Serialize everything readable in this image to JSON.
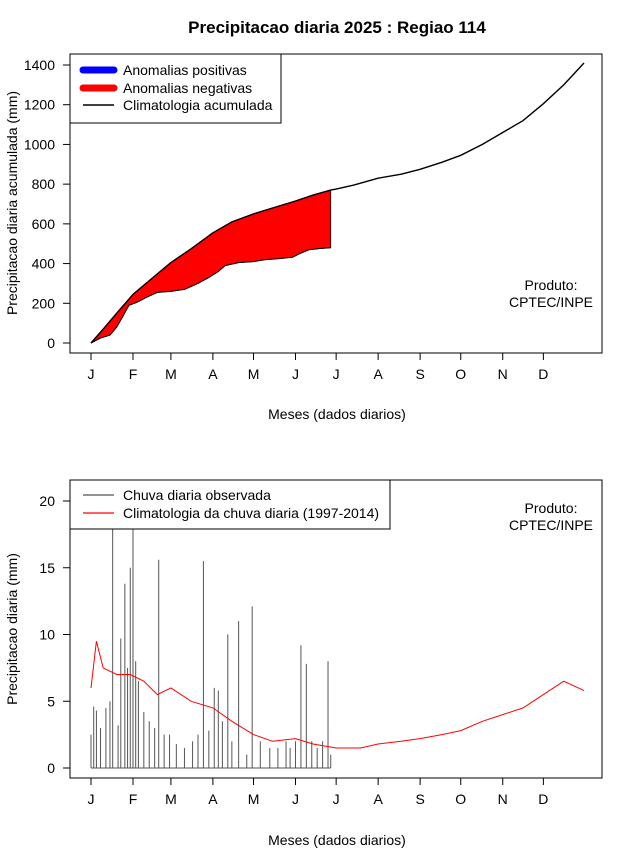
{
  "title": "Precipitacao diaria 2025 : Regiao 114",
  "chart_data": [
    {
      "type": "area",
      "xlabel": "Meses (dados diarios)",
      "ylabel": "Precipitacao diaria acumulada (mm)",
      "x_unit": "day of year",
      "xlim": [
        1,
        365
      ],
      "ylim": [
        0,
        1400
      ],
      "yticks": [
        0,
        200,
        400,
        600,
        800,
        1000,
        1200,
        1400
      ],
      "xtick_labels": [
        "J",
        "F",
        "M",
        "A",
        "M",
        "J",
        "J",
        "A",
        "S",
        "O",
        "N",
        "D"
      ],
      "xtick_days": [
        1,
        32,
        60,
        91,
        121,
        152,
        182,
        213,
        244,
        274,
        305,
        335
      ],
      "legend_position": "top-left",
      "legend": [
        {
          "label": "Anomalias positivas",
          "color": "#0000ff",
          "style": "thick"
        },
        {
          "label": "Anomalias negativas",
          "color": "#ff0000",
          "style": "thick"
        },
        {
          "label": "Climatologia acumulada",
          "color": "#000000",
          "style": "line"
        }
      ],
      "credit": [
        "Produto:",
        "CPTEC/INPE"
      ],
      "series": [
        {
          "name": "Climatologia acumulada",
          "x": [
            1,
            10,
            20,
            32,
            45,
            60,
            75,
            91,
            105,
            121,
            135,
            152,
            165,
            178,
            182,
            195,
            213,
            230,
            244,
            260,
            274,
            290,
            305,
            320,
            335,
            350,
            365
          ],
          "values": [
            0,
            70,
            150,
            245,
            320,
            405,
            475,
            555,
            610,
            650,
            680,
            715,
            745,
            770,
            775,
            795,
            830,
            850,
            875,
            910,
            945,
            1000,
            1060,
            1120,
            1205,
            1300,
            1410
          ]
        },
        {
          "name": "Precipitacao observada acumulada",
          "x": [
            1,
            8,
            15,
            20,
            25,
            29,
            35,
            42,
            50,
            60,
            70,
            80,
            88,
            95,
            100,
            110,
            121,
            130,
            140,
            150,
            155,
            162,
            170,
            178
          ],
          "values": [
            0,
            25,
            40,
            80,
            140,
            190,
            205,
            230,
            255,
            260,
            270,
            300,
            330,
            360,
            390,
            405,
            410,
            420,
            425,
            432,
            450,
            470,
            476,
            480
          ]
        }
      ]
    },
    {
      "type": "line",
      "xlabel": "Meses (dados diarios)",
      "ylabel": "Precipitacao diaria (mm)",
      "x_unit": "day of year",
      "xlim": [
        1,
        365
      ],
      "ylim": [
        0,
        20
      ],
      "yticks": [
        0,
        5,
        10,
        15,
        20
      ],
      "xtick_labels": [
        "J",
        "F",
        "M",
        "A",
        "M",
        "J",
        "J",
        "A",
        "S",
        "O",
        "N",
        "D"
      ],
      "xtick_days": [
        1,
        32,
        60,
        91,
        121,
        152,
        182,
        213,
        244,
        274,
        305,
        335
      ],
      "legend_position": "top-left",
      "legend": [
        {
          "label": "Chuva diaria observada",
          "color": "#555555",
          "style": "line"
        },
        {
          "label": "Climatologia da chuva diaria (1997-2014)",
          "color": "#ff0000",
          "style": "line"
        }
      ],
      "credit": [
        "Produto:",
        "CPTEC/INPE"
      ],
      "series": [
        {
          "name": "Chuva diaria observada",
          "color": "#555555",
          "x": [
            1,
            3,
            5,
            8,
            12,
            15,
            17,
            21,
            23,
            26,
            28,
            30,
            32,
            34,
            36,
            40,
            44,
            48,
            51,
            55,
            59,
            64,
            70,
            76,
            80,
            84,
            88,
            92,
            95,
            98,
            102,
            105,
            110,
            116,
            120,
            126,
            133,
            139,
            145,
            148,
            152,
            156,
            160,
            164,
            168,
            172,
            176,
            178
          ],
          "values": [
            2.5,
            4.6,
            4.3,
            3.0,
            4.5,
            5.0,
            18.5,
            3.2,
            9.7,
            13.8,
            7.5,
            15.0,
            18.0,
            8.0,
            6.5,
            4.2,
            3.5,
            3.0,
            15.6,
            2.5,
            2.5,
            1.8,
            1.5,
            2.0,
            2.5,
            15.5,
            2.8,
            6.0,
            5.8,
            3.5,
            10.0,
            2.0,
            11.0,
            1.0,
            12.1,
            2.0,
            1.5,
            1.5,
            2.0,
            1.5,
            2.0,
            9.2,
            7.8,
            2.0,
            1.5,
            2.0,
            8.0,
            1.0
          ]
        },
        {
          "name": "Climatologia da chuva diaria (1997-2014)",
          "color": "#ff0000",
          "x": [
            1,
            5,
            10,
            20,
            30,
            40,
            50,
            60,
            75,
            91,
            105,
            121,
            135,
            152,
            165,
            182,
            200,
            213,
            230,
            244,
            260,
            274,
            290,
            305,
            320,
            335,
            350,
            365
          ],
          "values": [
            6.0,
            9.5,
            7.5,
            7.0,
            7.0,
            6.5,
            5.5,
            6.0,
            5.0,
            4.5,
            3.5,
            2.5,
            2.0,
            2.2,
            1.8,
            1.5,
            1.5,
            1.8,
            2.0,
            2.2,
            2.5,
            2.8,
            3.5,
            4.0,
            4.5,
            5.5,
            6.5,
            5.8
          ]
        }
      ]
    }
  ]
}
